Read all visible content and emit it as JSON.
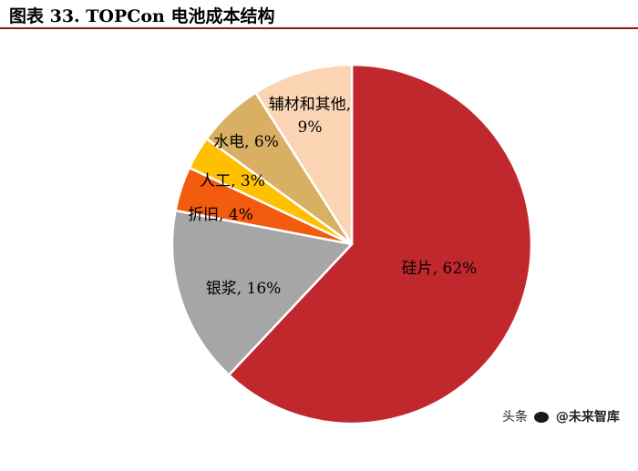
{
  "figure": {
    "title": "图表 33. TOPCon 电池成本结构"
  },
  "watermark": {
    "prefix": "头条",
    "handle": "@未来智库",
    "icon": "wechat-icon"
  },
  "chart_data": {
    "type": "pie",
    "title": "图表 33. TOPCon 电池成本结构",
    "slices": [
      {
        "name": "硅片",
        "value": 62,
        "label": "硅片, 62%",
        "color": "#c0282e"
      },
      {
        "name": "银浆",
        "value": 16,
        "label": "银浆, 16%",
        "color": "#a6a6a6"
      },
      {
        "name": "折旧",
        "value": 4,
        "label": "折旧, 4%",
        "color": "#f35b0e"
      },
      {
        "name": "人工",
        "value": 3,
        "label": "人工, 3%",
        "color": "#ffc000"
      },
      {
        "name": "水电",
        "value": 6,
        "label": "水电, 6%",
        "color": "#d9b063"
      },
      {
        "name": "辅材和其他",
        "value": 9,
        "label_lines": [
          "辅材和其他,",
          "9%"
        ],
        "color": "#fbd4b4"
      }
    ],
    "start": "12 o'clock",
    "direction": "clockwise",
    "legend": "none"
  }
}
